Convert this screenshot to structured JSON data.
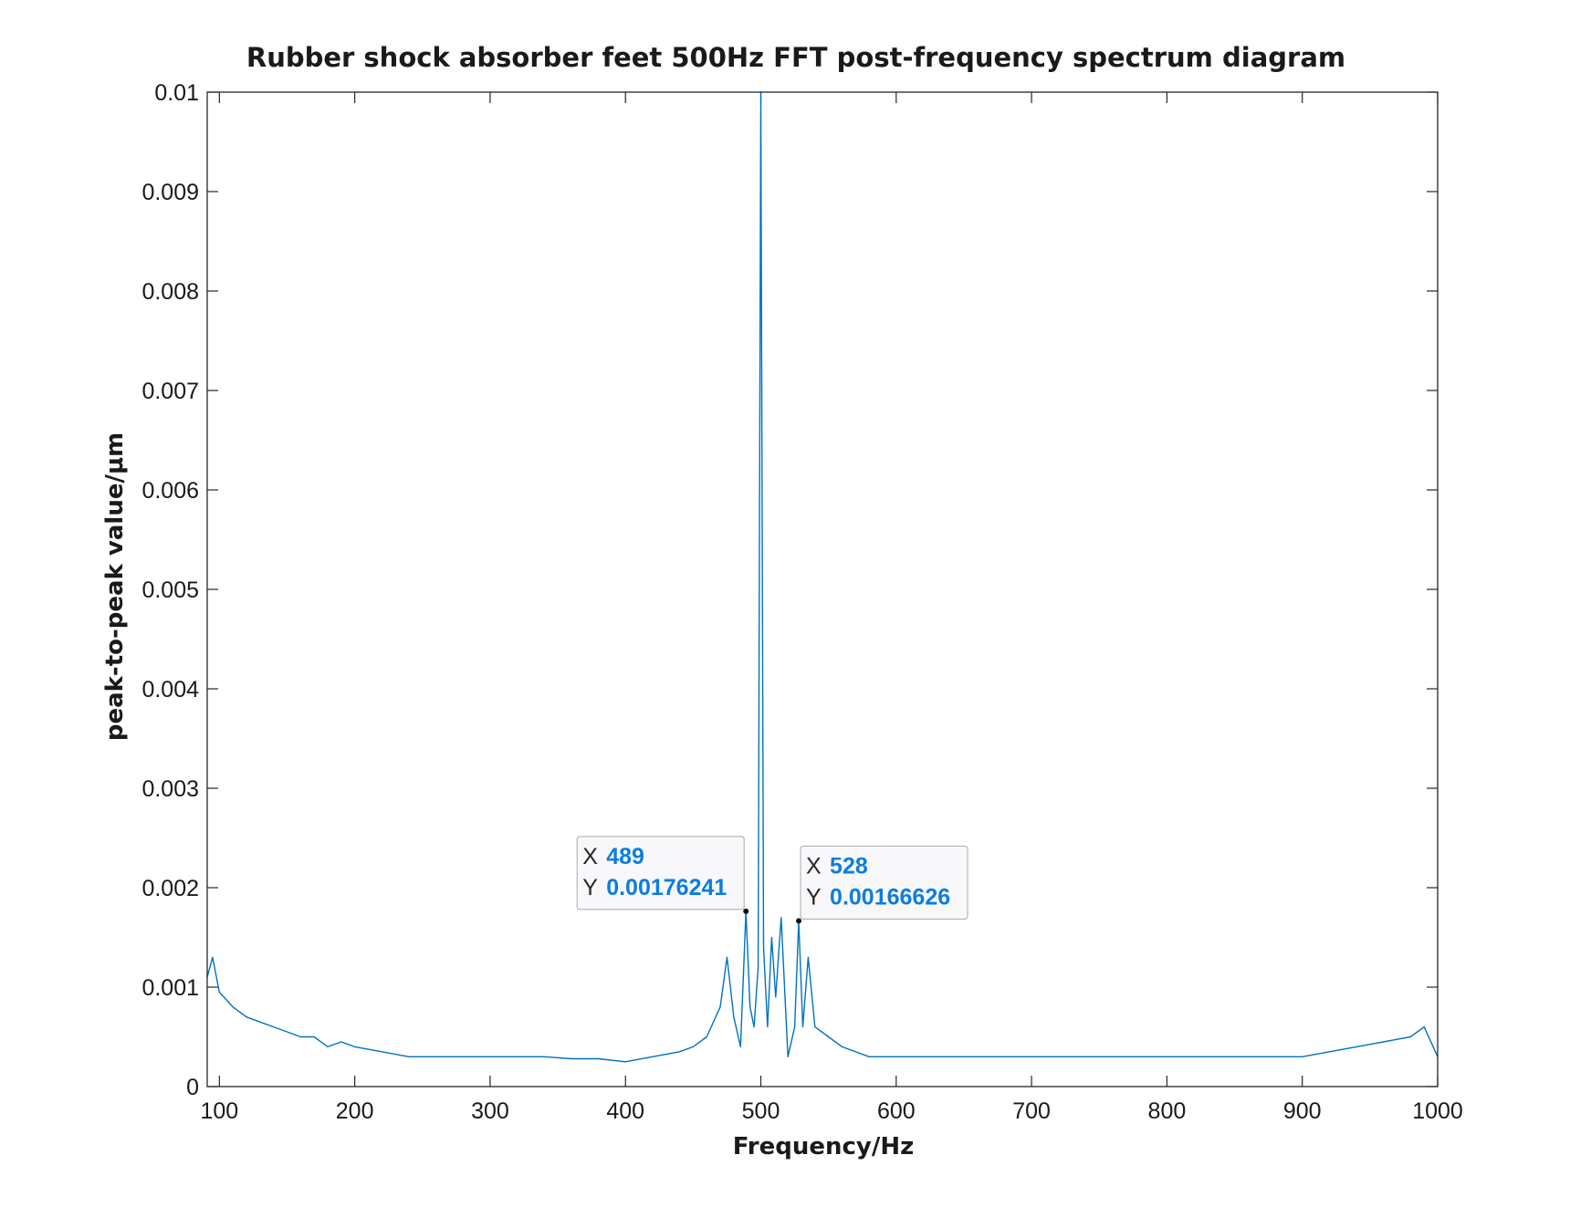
{
  "chart_data": {
    "type": "line",
    "title": "Rubber shock absorber feet 500Hz FFT post-frequency spectrum diagram",
    "xlabel": "Frequency/Hz",
    "ylabel": "peak-to-peak value/μm",
    "xlim": [
      91,
      1000
    ],
    "ylim": [
      0,
      0.01
    ],
    "xticks": [
      "100",
      "200",
      "300",
      "400",
      "500",
      "600",
      "700",
      "800",
      "900",
      "1000"
    ],
    "yticks": [
      "0",
      "0.001",
      "0.002",
      "0.003",
      "0.004",
      "0.005",
      "0.006",
      "0.007",
      "0.008",
      "0.009",
      "0.01"
    ],
    "grid": false,
    "line_color": "#0072bd",
    "series": [
      {
        "x": [
          91,
          95,
          100,
          110,
          120,
          130,
          140,
          150,
          160,
          170,
          180,
          190,
          200,
          220,
          240,
          260,
          280,
          300,
          320,
          340,
          360,
          380,
          400,
          420,
          440,
          450,
          460,
          470,
          475,
          480,
          485,
          489,
          492,
          495,
          498,
          500,
          502,
          505,
          508,
          511,
          515,
          520,
          525,
          528,
          531,
          535,
          540,
          550,
          560,
          580,
          600,
          620,
          650,
          700,
          750,
          800,
          850,
          900,
          940,
          960,
          980,
          990,
          1000
        ],
        "y": [
          0.0011,
          0.0013,
          0.00095,
          0.0008,
          0.0007,
          0.00065,
          0.0006,
          0.00055,
          0.0005,
          0.0005,
          0.0004,
          0.00045,
          0.0004,
          0.00035,
          0.0003,
          0.0003,
          0.0003,
          0.0003,
          0.0003,
          0.0003,
          0.00028,
          0.00028,
          0.00025,
          0.0003,
          0.00035,
          0.0004,
          0.0005,
          0.0008,
          0.0013,
          0.0007,
          0.0004,
          0.00176241,
          0.0008,
          0.0006,
          0.0012,
          0.01,
          0.0014,
          0.0006,
          0.0015,
          0.0009,
          0.0017,
          0.0003,
          0.0006,
          0.00166626,
          0.0006,
          0.0013,
          0.0006,
          0.0005,
          0.0004,
          0.0003,
          0.0003,
          0.0003,
          0.0003,
          0.0003,
          0.0003,
          0.0003,
          0.0003,
          0.0003,
          0.0004,
          0.00045,
          0.0005,
          0.0006,
          0.0003
        ]
      }
    ],
    "datatips": [
      {
        "x_label": "X",
        "x_value": "489",
        "y_label": "Y",
        "y_value": "0.00176241",
        "x": 489,
        "y": 0.00176241
      },
      {
        "x_label": "X",
        "x_value": "528",
        "y_label": "Y",
        "y_value": "0.00166626",
        "x": 528,
        "y": 0.00166626
      }
    ]
  }
}
